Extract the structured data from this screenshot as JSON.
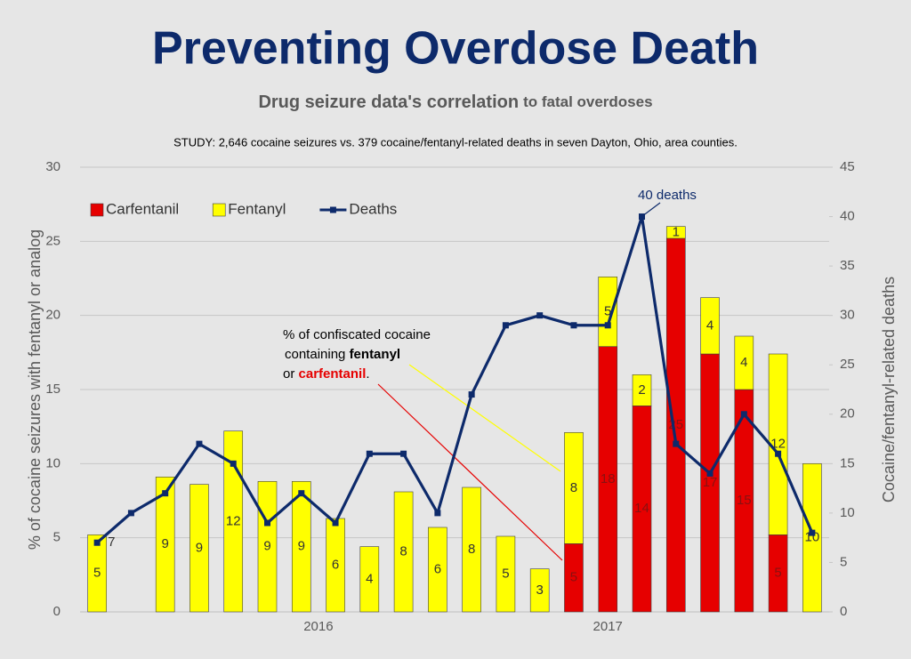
{
  "chart_data": {
    "type": "bar",
    "title": "Preventing Overdose Death",
    "subtitle": [
      "Drug seizure data's correlation",
      "to fatal overdoses"
    ],
    "note": "STUDY: 2,646 cocaine seizures vs. 379 cocaine/fentanyl-related deaths in seven Dayton, Ohio, area counties.",
    "categories": [
      null,
      null,
      null,
      null,
      null,
      null,
      null,
      null,
      null,
      null,
      null,
      null,
      null,
      null,
      null,
      null,
      null,
      null,
      null,
      null,
      null,
      null
    ],
    "x_group_labels": [
      "2016",
      "2017"
    ],
    "y_label": "% of cocaine seizures with fentanyl or analog",
    "y2_label": "Cocaine/fentanyl-related deaths",
    "ylim": [
      0,
      30
    ],
    "yticks": [
      0,
      5,
      10,
      15,
      20,
      25,
      30
    ],
    "y2lim": [
      0,
      45
    ],
    "y2ticks": [
      0,
      5,
      10,
      15,
      20,
      25,
      30,
      35,
      40,
      45
    ],
    "grid": true,
    "stacked": true,
    "legend": "top-left",
    "series": [
      {
        "name": "Carfentanil",
        "type": "bar",
        "color": "#e60000",
        "values": [
          null,
          null,
          null,
          null,
          null,
          null,
          null,
          null,
          null,
          null,
          null,
          null,
          null,
          null,
          4.6,
          17.9,
          13.9,
          25.2,
          17.4,
          15.0,
          5.2,
          null
        ],
        "value_labels": [
          null,
          null,
          null,
          null,
          null,
          null,
          null,
          null,
          null,
          null,
          null,
          null,
          null,
          null,
          "5",
          "18",
          "14",
          "25",
          "17",
          "15",
          "5",
          null
        ]
      },
      {
        "name": "Fentanyl",
        "type": "bar",
        "color": "#ffff00",
        "values": [
          5.2,
          null,
          9.1,
          8.6,
          12.2,
          8.8,
          8.8,
          6.3,
          4.4,
          8.1,
          5.7,
          8.4,
          5.1,
          2.9,
          7.5,
          4.7,
          2.1,
          0.8,
          3.8,
          3.6,
          12.2,
          10.0
        ],
        "value_labels": [
          "5",
          null,
          "9",
          "9",
          "12",
          "9",
          "9",
          "6",
          "4",
          "8",
          "6",
          "8",
          "5",
          "3",
          "8",
          "5",
          "2",
          "1",
          "4",
          "4",
          "12",
          "10"
        ]
      },
      {
        "name": "Deaths",
        "type": "line",
        "axis": "y2",
        "color": "#0d2a6b",
        "values": [
          7,
          10,
          12,
          17,
          15,
          9,
          12,
          9,
          16,
          16,
          10,
          22,
          29,
          30,
          29,
          29,
          40,
          17,
          14,
          20,
          16,
          8
        ],
        "value_labels": [
          "7",
          null,
          null,
          null,
          null,
          null,
          null,
          null,
          null,
          null,
          null,
          null,
          null,
          null,
          null,
          null,
          null,
          null,
          null,
          null,
          null,
          null
        ]
      }
    ],
    "annotations": [
      [
        "40 deaths"
      ],
      [
        [
          "% of confiscated cocaine"
        ],
        [
          "containing ",
          "fentanyl"
        ],
        [
          "or ",
          "carfentanil",
          "."
        ]
      ]
    ]
  }
}
